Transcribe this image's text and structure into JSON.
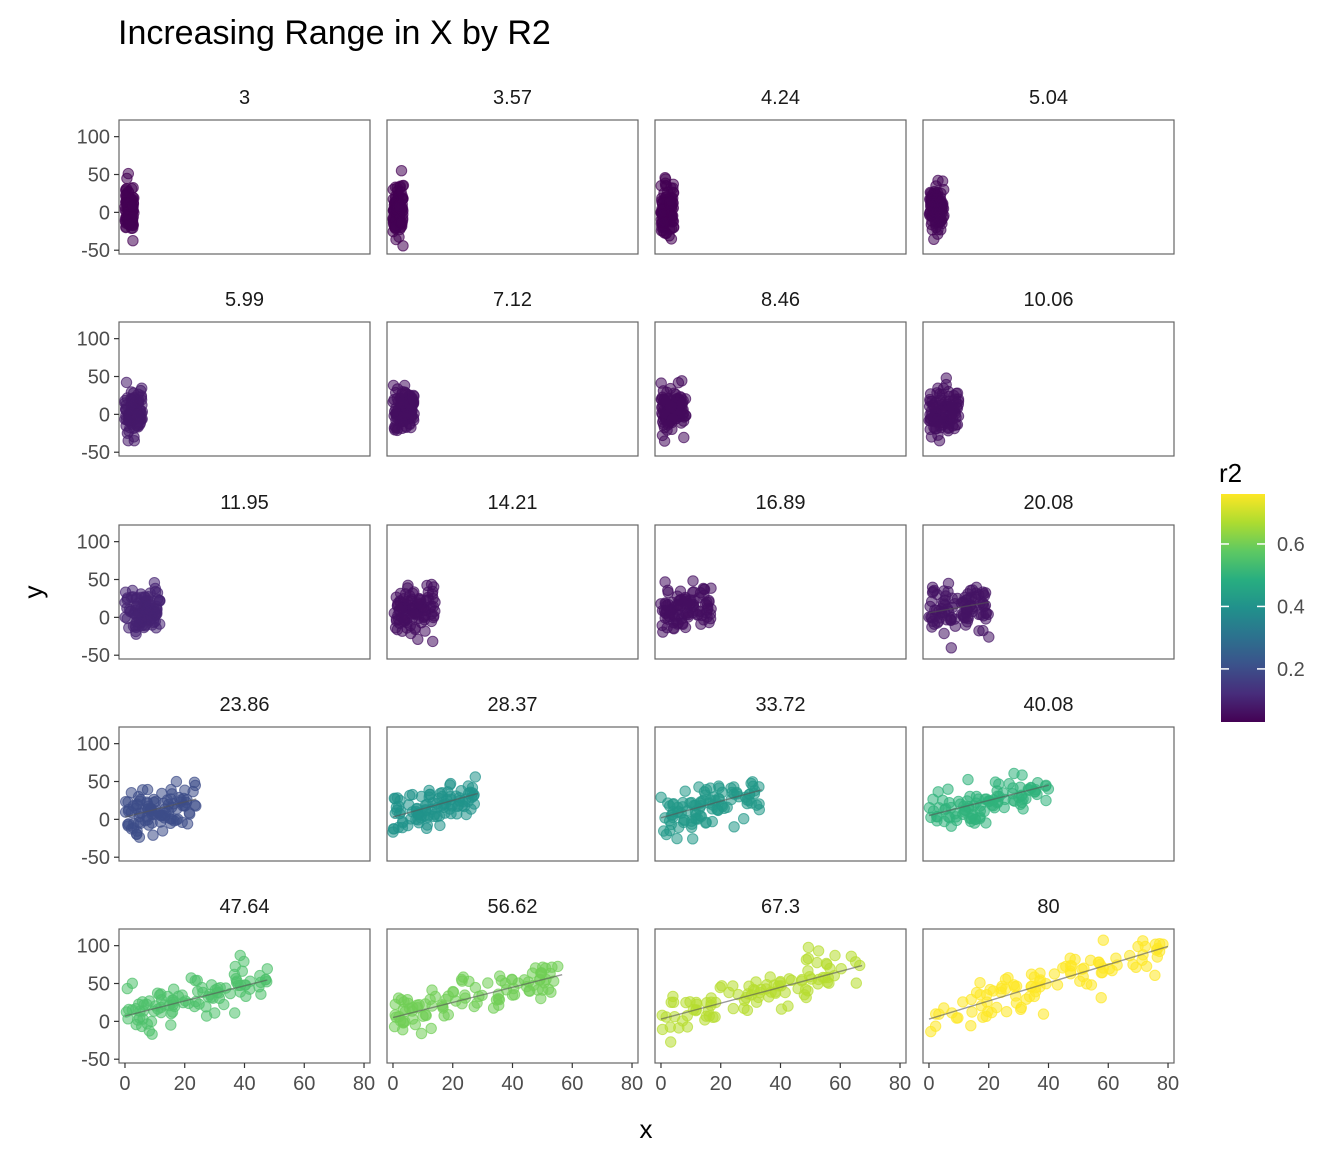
{
  "chart_data": {
    "type": "scatter",
    "title": "Increasing Range in X by R2",
    "xlabel": "x",
    "ylabel": "y",
    "xlim": [
      -2,
      82
    ],
    "ylim": [
      -55,
      122
    ],
    "x_ticks": [
      0,
      20,
      40,
      60,
      80
    ],
    "y_ticks": [
      -50,
      0,
      50,
      100
    ],
    "legend": {
      "title": "r2",
      "position": "right",
      "ticks": [
        0.2,
        0.4,
        0.6
      ],
      "range": [
        0.03,
        0.76
      ]
    },
    "colormap": "viridis",
    "panels": [
      {
        "label": "3",
        "x_max": 3,
        "r2": 0.03,
        "slope": 0.0,
        "intercept": 3,
        "noise": 16
      },
      {
        "label": "3.57",
        "x_max": 3.57,
        "r2": 0.03,
        "slope": 0.0,
        "intercept": 1,
        "noise": 17
      },
      {
        "label": "4.24",
        "x_max": 4.24,
        "r2": 0.03,
        "slope": 0.0,
        "intercept": 3,
        "noise": 17
      },
      {
        "label": "5.04",
        "x_max": 5.04,
        "r2": 0.04,
        "slope": 0.0,
        "intercept": 5,
        "noise": 16
      },
      {
        "label": "5.99",
        "x_max": 5.99,
        "r2": 0.08,
        "slope": 1.2,
        "intercept": 0,
        "noise": 15
      },
      {
        "label": "7.12",
        "x_max": 7.12,
        "r2": 0.06,
        "slope": 0.9,
        "intercept": 2,
        "noise": 14
      },
      {
        "label": "8.46",
        "x_max": 8.46,
        "r2": 0.05,
        "slope": 0.6,
        "intercept": 3,
        "noise": 16
      },
      {
        "label": "10.06",
        "x_max": 10.06,
        "r2": 0.06,
        "slope": 0.8,
        "intercept": 2,
        "noise": 16
      },
      {
        "label": "11.95",
        "x_max": 11.95,
        "r2": 0.1,
        "slope": 1.0,
        "intercept": 3,
        "noise": 16
      },
      {
        "label": "14.21",
        "x_max": 14.21,
        "r2": 0.06,
        "slope": 0.7,
        "intercept": 4,
        "noise": 16
      },
      {
        "label": "16.89",
        "x_max": 16.89,
        "r2": 0.06,
        "slope": 0.6,
        "intercept": 6,
        "noise": 15
      },
      {
        "label": "20.08",
        "x_max": 20.08,
        "r2": 0.07,
        "slope": 0.7,
        "intercept": 6,
        "noise": 15
      },
      {
        "label": "23.86",
        "x_max": 23.86,
        "r2": 0.2,
        "slope": 1.0,
        "intercept": 3,
        "noise": 15
      },
      {
        "label": "28.37",
        "x_max": 28.37,
        "r2": 0.4,
        "slope": 1.1,
        "intercept": 3,
        "noise": 14
      },
      {
        "label": "33.72",
        "x_max": 33.72,
        "r2": 0.42,
        "slope": 1.1,
        "intercept": 2,
        "noise": 16
      },
      {
        "label": "40.08",
        "x_max": 40.08,
        "r2": 0.5,
        "slope": 1.0,
        "intercept": 5,
        "noise": 14
      },
      {
        "label": "47.64",
        "x_max": 47.64,
        "r2": 0.55,
        "slope": 1.0,
        "intercept": 7,
        "noise": 15
      },
      {
        "label": "56.62",
        "x_max": 56.62,
        "r2": 0.6,
        "slope": 1.0,
        "intercept": 5,
        "noise": 15
      },
      {
        "label": "67.3",
        "x_max": 67.3,
        "r2": 0.68,
        "slope": 1.05,
        "intercept": 3,
        "noise": 15
      },
      {
        "label": "80",
        "x_max": 80,
        "r2": 0.76,
        "slope": 1.2,
        "intercept": 3,
        "noise": 14
      }
    ]
  }
}
